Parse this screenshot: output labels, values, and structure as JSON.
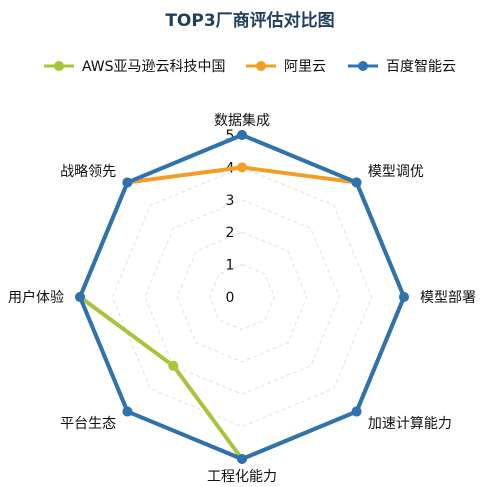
{
  "chart_data": {
    "type": "radar",
    "title": "TOP3厂商评估对比图",
    "axes": [
      "数据集成",
      "模型调优",
      "模型部署",
      "加速计算能力",
      "工程化能力",
      "平台生态",
      "用户体验",
      "战略领先"
    ],
    "rlim": [
      0,
      5
    ],
    "ticks": [
      0,
      1,
      2,
      3,
      4,
      5
    ],
    "grid": true,
    "legend_position": "top",
    "series": [
      {
        "name": "AWS亚马逊云科技中国",
        "color": "#a8c43a",
        "values": [
          5,
          5,
          5,
          5,
          5,
          3,
          5,
          5
        ]
      },
      {
        "name": "阿里云",
        "color": "#f29d26",
        "values": [
          4,
          5,
          5,
          5,
          5,
          5,
          5,
          5
        ]
      },
      {
        "name": "百度智能云",
        "color": "#2e73b1",
        "values": [
          5,
          5,
          5,
          5,
          5,
          5,
          5,
          5
        ]
      }
    ]
  }
}
